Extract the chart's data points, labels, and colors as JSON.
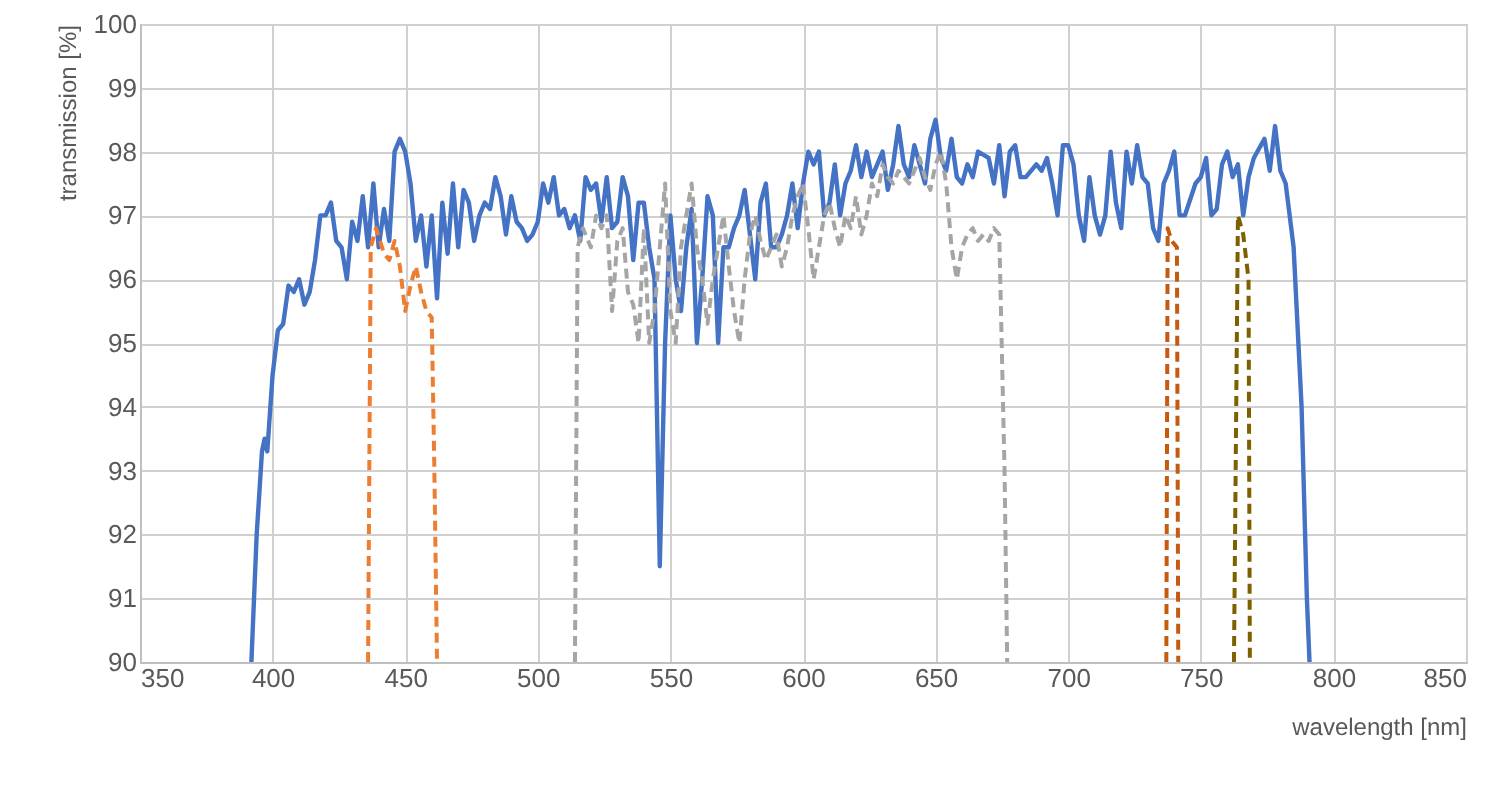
{
  "chart_data": {
    "type": "line",
    "xlabel": "wavelength [nm]",
    "ylabel": "transmission [%]",
    "xlim": [
      350,
      850
    ],
    "xticks": [
      350,
      400,
      450,
      500,
      550,
      600,
      650,
      700,
      750,
      800,
      850
    ],
    "ylim": [
      90,
      100
    ],
    "yticks": [
      90,
      91,
      92,
      93,
      94,
      95,
      96,
      97,
      98,
      99,
      100
    ],
    "grid": true,
    "marker": "none",
    "series": [
      {
        "color": "#4472c4",
        "line_style": "solid",
        "x": [
          392,
          394,
          396,
          397,
          398,
          400,
          402,
          404,
          406,
          408,
          410,
          412,
          414,
          416,
          418,
          420,
          422,
          424,
          426,
          428,
          430,
          432,
          434,
          436,
          438,
          440,
          442,
          444,
          446,
          448,
          450,
          452,
          454,
          456,
          458,
          460,
          462,
          464,
          466,
          468,
          470,
          472,
          474,
          476,
          478,
          480,
          482,
          484,
          486,
          488,
          490,
          492,
          494,
          496,
          498,
          500,
          502,
          504,
          506,
          508,
          510,
          512,
          514,
          516,
          518,
          520,
          522,
          524,
          526,
          528,
          530,
          532,
          534,
          536,
          538,
          540,
          542,
          544,
          546,
          548,
          550,
          552,
          554,
          556,
          558,
          560,
          562,
          564,
          566,
          568,
          570,
          572,
          574,
          576,
          578,
          580,
          582,
          584,
          586,
          588,
          590,
          592,
          594,
          596,
          598,
          600,
          602,
          604,
          606,
          608,
          610,
          612,
          614,
          616,
          618,
          620,
          622,
          624,
          626,
          628,
          630,
          632,
          634,
          636,
          638,
          640,
          642,
          644,
          646,
          648,
          650,
          652,
          654,
          656,
          658,
          660,
          662,
          664,
          666,
          670,
          672,
          674,
          676,
          678,
          680,
          682,
          684,
          688,
          690,
          692,
          694,
          696,
          698,
          700,
          702,
          704,
          706,
          708,
          710,
          712,
          714,
          716,
          718,
          720,
          722,
          724,
          726,
          728,
          730,
          732,
          734,
          736,
          738,
          740,
          742,
          744,
          748,
          750,
          752,
          754,
          756,
          758,
          760,
          762,
          764,
          766,
          768,
          770,
          774,
          776,
          778,
          780,
          782,
          785,
          788,
          790,
          791
        ],
        "values": [
          90,
          92,
          93.3,
          93.5,
          93.3,
          94.5,
          95.2,
          95.3,
          95.9,
          95.8,
          96.0,
          95.6,
          95.8,
          96.3,
          97.0,
          97.0,
          97.2,
          96.6,
          96.5,
          96.0,
          96.9,
          96.6,
          97.3,
          96.5,
          97.5,
          96.5,
          97.1,
          96.6,
          98.0,
          98.2,
          98.0,
          97.5,
          96.6,
          97.0,
          96.2,
          97.0,
          95.7,
          97.2,
          96.4,
          97.5,
          96.5,
          97.4,
          97.2,
          96.6,
          97.0,
          97.2,
          97.1,
          97.6,
          97.3,
          96.7,
          97.3,
          96.9,
          96.8,
          96.6,
          96.7,
          96.9,
          97.5,
          97.2,
          97.6,
          97.0,
          97.1,
          96.8,
          97.0,
          96.6,
          97.6,
          97.4,
          97.5,
          96.9,
          97.6,
          96.8,
          96.9,
          97.6,
          97.3,
          96.3,
          97.2,
          97.2,
          96.5,
          96.0,
          91.5,
          95.0,
          97.0,
          96.0,
          95.5,
          96.5,
          97.1,
          95.0,
          96.0,
          97.3,
          97.0,
          95.0,
          96.5,
          96.5,
          96.8,
          97.0,
          97.4,
          96.7,
          96.0,
          97.2,
          97.5,
          96.5,
          96.5,
          96.7,
          97.0,
          97.5,
          96.8,
          97.5,
          98.0,
          97.8,
          98.0,
          97.0,
          97.2,
          97.8,
          97.0,
          97.5,
          97.7,
          98.1,
          97.6,
          98.0,
          97.6,
          97.8,
          98.0,
          97.4,
          97.8,
          98.4,
          97.8,
          97.6,
          98.1,
          97.8,
          97.5,
          98.2,
          98.5,
          97.9,
          97.7,
          98.2,
          97.6,
          97.5,
          97.8,
          97.6,
          98.0,
          97.9,
          97.5,
          98.1,
          97.3,
          98.0,
          98.1,
          97.6,
          97.6,
          97.8,
          97.7,
          97.9,
          97.5,
          97.0,
          98.1,
          98.1,
          97.8,
          97.0,
          96.6,
          97.6,
          97.0,
          96.7,
          97.0,
          98.0,
          97.2,
          96.8,
          98.0,
          97.5,
          98.1,
          97.6,
          97.5,
          96.8,
          96.6,
          97.5,
          97.7,
          98.0,
          97.0,
          97.0,
          97.5,
          97.6,
          97.9,
          97.0,
          97.1,
          97.8,
          98.0,
          97.6,
          97.8,
          97.0,
          97.6,
          97.9,
          98.2,
          97.7,
          98.4,
          97.7,
          97.5,
          96.5,
          94,
          91,
          90
        ]
      },
      {
        "color": "#ed7d31",
        "line_style": "dashed",
        "x": [
          436,
          437,
          439,
          442,
          444,
          446,
          448,
          450,
          452,
          454,
          456,
          458,
          460,
          461,
          462
        ],
        "values": [
          90,
          96.5,
          96.8,
          96.4,
          96.3,
          96.6,
          96.2,
          95.5,
          95.9,
          96.2,
          95.8,
          95.5,
          95.4,
          93,
          90
        ]
      },
      {
        "color": "#a5a5a5",
        "line_style": "dashed",
        "x": [
          514,
          515,
          517,
          520,
          522,
          524,
          526,
          528,
          530,
          532,
          534,
          536,
          538,
          540,
          542,
          544,
          546,
          548,
          550,
          552,
          554,
          556,
          558,
          560,
          562,
          564,
          566,
          568,
          570,
          572,
          574,
          576,
          578,
          580,
          582,
          584,
          586,
          588,
          590,
          592,
          594,
          596,
          598,
          600,
          602,
          604,
          606,
          608,
          610,
          612,
          614,
          616,
          618,
          620,
          622,
          624,
          626,
          628,
          630,
          632,
          634,
          636,
          638,
          640,
          642,
          644,
          646,
          648,
          650,
          652,
          654,
          656,
          658,
          660,
          662,
          664,
          666,
          668,
          670,
          672,
          674,
          676,
          677
        ],
        "values": [
          90,
          96.5,
          96.8,
          96.5,
          97.0,
          96.8,
          97.0,
          95.5,
          96.6,
          96.8,
          95.8,
          95.6,
          95.0,
          96.8,
          95.0,
          95.5,
          96.5,
          97.5,
          95.5,
          95.0,
          96.5,
          97.0,
          97.5,
          96.5,
          96.0,
          95.3,
          96.0,
          96.5,
          97.0,
          96.2,
          95.5,
          95.0,
          96.0,
          96.7,
          97.0,
          96.6,
          96.3,
          96.5,
          96.7,
          96.2,
          96.5,
          97.0,
          97.3,
          97.5,
          96.8,
          96.0,
          96.5,
          97.0,
          97.2,
          96.8,
          96.5,
          97.0,
          96.8,
          97.3,
          96.7,
          97.0,
          97.5,
          97.3,
          97.8,
          97.6,
          97.5,
          97.7,
          97.6,
          97.5,
          97.7,
          97.9,
          97.6,
          97.4,
          97.8,
          98.0,
          97.5,
          96.5,
          96.0,
          96.5,
          96.7,
          96.8,
          96.6,
          96.7,
          96.6,
          96.8,
          96.7,
          93,
          90
        ]
      },
      {
        "color": "#c55a11",
        "line_style": "dashed",
        "x": [
          737,
          737.5,
          739,
          741,
          741.5
        ],
        "values": [
          90,
          96.8,
          96.6,
          96.5,
          90
        ]
      },
      {
        "color": "#7f6000",
        "line_style": "dashed",
        "x": [
          762.5,
          764,
          766,
          768,
          768.5
        ],
        "values": [
          90,
          97.0,
          96.7,
          96.0,
          90
        ]
      }
    ]
  }
}
